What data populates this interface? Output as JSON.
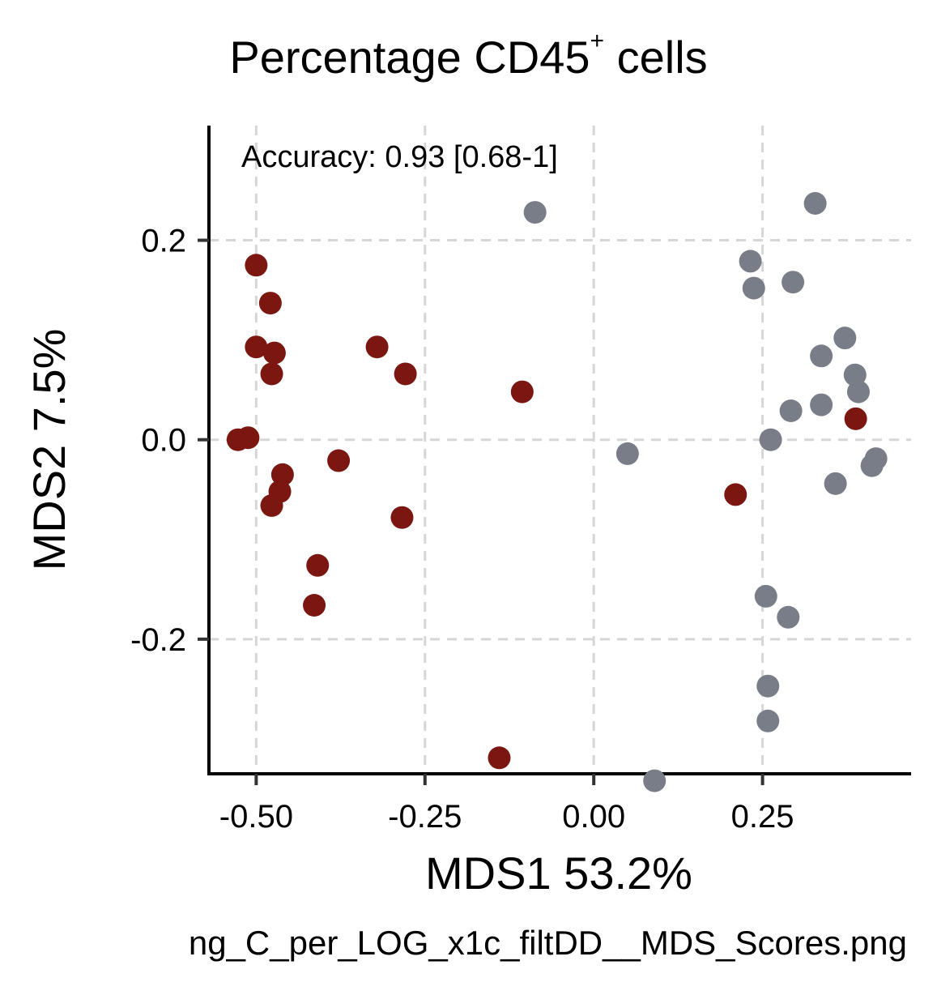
{
  "chart_data": {
    "type": "scatter",
    "title": "Percentage CD45",
    "title_superscript": "+",
    "title_suffix": " cells",
    "xlabel": "MDS1 53.2%",
    "ylabel": "MDS2 7.5%",
    "annotation": "Accuracy: 0.93 [0.68-1]",
    "xlim": [
      -0.57,
      0.47
    ],
    "ylim": [
      -0.335,
      0.315
    ],
    "x_ticks": [
      -0.5,
      -0.25,
      0.0,
      0.25
    ],
    "x_tick_labels": [
      "-0.50",
      "-0.25",
      "0.00",
      "0.25"
    ],
    "y_ticks": [
      0.2,
      0.0,
      -0.2
    ],
    "y_tick_labels": [
      "0.2",
      "0.0",
      "-0.2"
    ],
    "grid": true,
    "series": [
      {
        "color": "#7b1610",
        "points": [
          [
            -0.5,
            0.175
          ],
          [
            -0.479,
            0.137
          ],
          [
            -0.5,
            0.093
          ],
          [
            -0.473,
            0.087
          ],
          [
            -0.477,
            0.066
          ],
          [
            -0.321,
            0.093
          ],
          [
            -0.279,
            0.066
          ],
          [
            -0.106,
            0.048
          ],
          [
            -0.527,
            0.0
          ],
          [
            -0.512,
            0.002
          ],
          [
            -0.378,
            -0.021
          ],
          [
            -0.461,
            -0.035
          ],
          [
            -0.465,
            -0.052
          ],
          [
            -0.477,
            -0.066
          ],
          [
            -0.284,
            -0.078
          ],
          [
            -0.409,
            -0.126
          ],
          [
            -0.414,
            -0.166
          ],
          [
            -0.14,
            -0.319
          ],
          [
            0.21,
            -0.055
          ],
          [
            0.388,
            0.021
          ]
        ]
      },
      {
        "color": "#787d88",
        "points": [
          [
            -0.087,
            0.228
          ],
          [
            0.328,
            0.237
          ],
          [
            0.232,
            0.179
          ],
          [
            0.237,
            0.152
          ],
          [
            0.295,
            0.158
          ],
          [
            0.372,
            0.102
          ],
          [
            0.337,
            0.084
          ],
          [
            0.387,
            0.065
          ],
          [
            0.392,
            0.048
          ],
          [
            0.337,
            0.035
          ],
          [
            0.292,
            0.029
          ],
          [
            0.262,
            0.0
          ],
          [
            0.05,
            -0.014
          ],
          [
            0.418,
            -0.019
          ],
          [
            0.412,
            -0.026
          ],
          [
            0.358,
            -0.044
          ],
          [
            0.255,
            -0.157
          ],
          [
            0.288,
            -0.178
          ],
          [
            0.258,
            -0.247
          ],
          [
            0.258,
            -0.282
          ],
          [
            0.09,
            -0.342
          ]
        ]
      }
    ]
  },
  "footer_text": "ng_C_per_LOG_x1c_filtDD__MDS_Scores.png"
}
